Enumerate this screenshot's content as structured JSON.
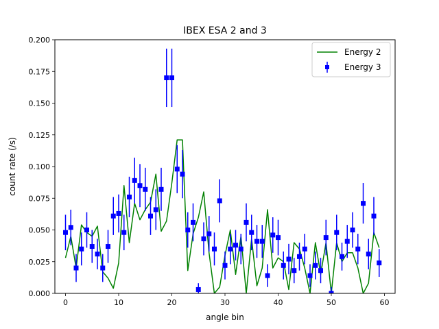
{
  "chart_data": {
    "type": "line+errorbar",
    "title": "IBEX ESA 2 and 3",
    "xlabel": "angle bin",
    "ylabel": "count rate (/s)",
    "xlim": [
      -2,
      62
    ],
    "ylim": [
      0,
      0.2
    ],
    "xticks": [
      0,
      10,
      20,
      30,
      40,
      50,
      60
    ],
    "xtick_labels": [
      "0",
      "10",
      "20",
      "30",
      "40",
      "50",
      "60"
    ],
    "yticks": [
      0,
      0.025,
      0.05,
      0.075,
      0.1,
      0.125,
      0.15,
      0.175,
      0.2
    ],
    "ytick_labels": [
      "0.000",
      "0.025",
      "0.050",
      "0.075",
      "0.100",
      "0.125",
      "0.150",
      "0.175",
      "0.200"
    ],
    "grid": false,
    "legend_position": "top-right",
    "series": [
      {
        "name": "Energy 2",
        "kind": "line",
        "color": "#008000",
        "x": [
          0,
          1,
          2,
          3,
          4,
          5,
          6,
          7,
          8,
          9,
          10,
          11,
          12,
          13,
          14,
          15,
          16,
          17,
          18,
          19,
          20,
          21,
          22,
          23,
          24,
          25,
          26,
          27,
          28,
          29,
          30,
          31,
          32,
          33,
          34,
          35,
          36,
          37,
          38,
          39,
          40,
          41,
          42,
          43,
          44,
          45,
          46,
          47,
          48,
          49,
          50,
          51,
          52,
          53,
          54,
          55,
          56,
          57,
          58,
          59
        ],
        "y": [
          0.028,
          0.045,
          0.02,
          0.054,
          0.048,
          0.045,
          0.053,
          0.017,
          0.012,
          0.004,
          0.024,
          0.085,
          0.04,
          0.071,
          0.058,
          0.066,
          0.072,
          0.094,
          0.049,
          0.057,
          0.087,
          0.121,
          0.121,
          0.018,
          0.047,
          0.06,
          0.08,
          0.032,
          0.0,
          0.005,
          0.03,
          0.05,
          0.015,
          0.045,
          0.0,
          0.043,
          0.006,
          0.02,
          0.066,
          0.02,
          0.028,
          0.025,
          0.003,
          0.04,
          0.035,
          0.02,
          0.0,
          0.04,
          0.015,
          0.04,
          0.0,
          0.04,
          0.025,
          0.032,
          0.032,
          0.02,
          0.0,
          0.008,
          0.048,
          0.036
        ]
      },
      {
        "name": "Energy 3",
        "kind": "errorbar",
        "color": "#0000ff",
        "x": [
          0,
          1,
          2,
          3,
          4,
          5,
          6,
          7,
          8,
          9,
          10,
          11,
          12,
          13,
          14,
          15,
          16,
          17,
          18,
          19,
          20,
          21,
          22,
          23,
          24,
          25,
          26,
          27,
          28,
          29,
          30,
          31,
          32,
          33,
          34,
          35,
          36,
          37,
          38,
          39,
          40,
          41,
          42,
          43,
          44,
          45,
          46,
          47,
          48,
          49,
          50,
          51,
          52,
          53,
          54,
          55,
          56,
          57,
          58,
          59
        ],
        "y": [
          0.048,
          0.052,
          0.02,
          0.035,
          0.05,
          0.037,
          0.031,
          0.02,
          0.037,
          0.061,
          0.063,
          0.048,
          0.076,
          0.089,
          0.085,
          0.082,
          0.061,
          0.066,
          0.082,
          0.17,
          0.17,
          0.098,
          0.094,
          0.05,
          0.056,
          0.003,
          0.043,
          0.047,
          0.035,
          0.073,
          0.022,
          0.035,
          0.038,
          0.035,
          0.056,
          0.048,
          0.041,
          0.041,
          0.014,
          0.046,
          0.044,
          0.022,
          0.027,
          0.018,
          0.029,
          0.035,
          0.014,
          0.022,
          0.018,
          0.044,
          0.0,
          0.048,
          0.029,
          0.041,
          0.05,
          0.035,
          0.071,
          0.031,
          0.061,
          0.024
        ],
        "yerr": [
          0.014,
          0.014,
          0.011,
          0.013,
          0.014,
          0.013,
          0.012,
          0.011,
          0.013,
          0.015,
          0.015,
          0.014,
          0.016,
          0.018,
          0.017,
          0.017,
          0.015,
          0.016,
          0.017,
          0.023,
          0.023,
          0.019,
          0.019,
          0.014,
          0.015,
          0.005,
          0.013,
          0.014,
          0.013,
          0.017,
          0.011,
          0.012,
          0.012,
          0.012,
          0.015,
          0.014,
          0.013,
          0.013,
          0.009,
          0.014,
          0.014,
          0.011,
          0.012,
          0.01,
          0.011,
          0.012,
          0.009,
          0.011,
          0.01,
          0.014,
          0.005,
          0.014,
          0.011,
          0.013,
          0.014,
          0.012,
          0.016,
          0.012,
          0.015,
          0.011
        ]
      }
    ]
  }
}
